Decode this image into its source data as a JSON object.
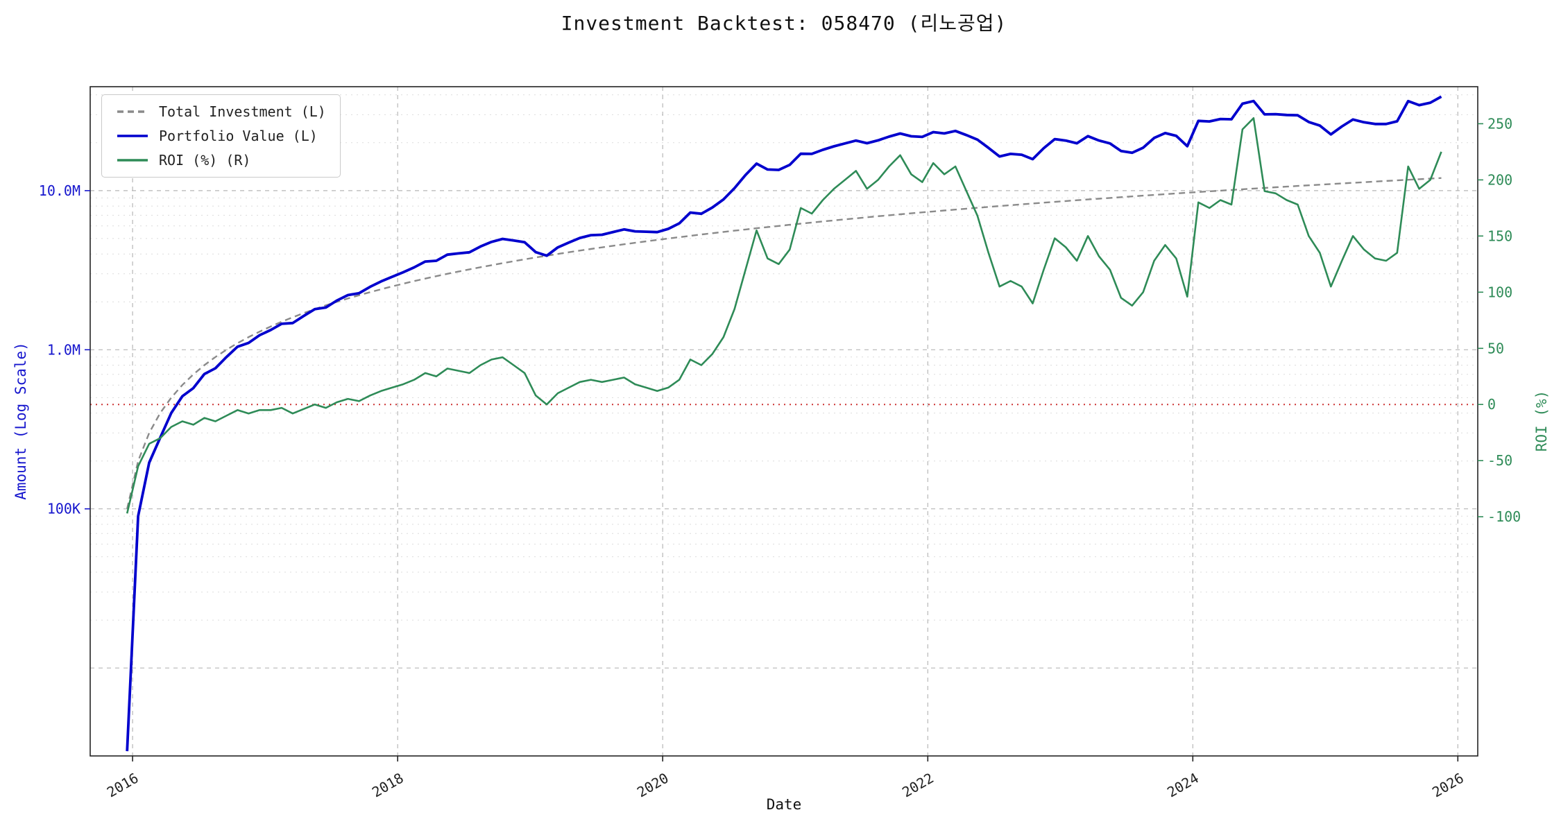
{
  "chart_data": {
    "type": "line",
    "title": "Investment Backtest: 058470 (리노공업)",
    "xlabel": "Date",
    "left_axis": {
      "label": "Amount (Log Scale)",
      "scale": "log",
      "color": "#1515cd",
      "range": [
        2800,
        45000000
      ],
      "tick_labels": [
        {
          "value": 100000,
          "label": "100K"
        },
        {
          "value": 1000000,
          "label": "1.0M"
        },
        {
          "value": 10000000,
          "label": "10.0M"
        }
      ]
    },
    "right_axis": {
      "label": "ROI (%)",
      "scale": "linear",
      "color": "#2e8b57",
      "range": [
        -313,
        283
      ],
      "ticks": [
        -100,
        -50,
        0,
        50,
        100,
        150,
        200,
        250
      ]
    },
    "x_axis": {
      "ticks": [
        2016,
        2018,
        2020,
        2022,
        2024,
        2026
      ],
      "range": [
        2015.68,
        2026.15
      ]
    },
    "zero_roi_line": {
      "value": 0,
      "color": "#cc3333",
      "style": "dotted"
    },
    "grid": {
      "major_color": "#aaaaaa",
      "minor_color": "#cccccc",
      "on": true
    },
    "legend": {
      "position": "upper-left",
      "items": [
        {
          "label": "Total Investment (L)",
          "color": "#8a8a8a",
          "dash": "9,6",
          "width": 2.4
        },
        {
          "label": "Portfolio Value (L)",
          "color": "#0000cd",
          "dash": "",
          "width": 3.8
        },
        {
          "label": "ROI (%) (R)",
          "color": "#2e8b57",
          "dash": "",
          "width": 2.6
        }
      ]
    },
    "series": {
      "start_month": "2015-12",
      "months": 120,
      "monthly_contribution": 100000,
      "total_investment_formula": "100000 * (month_index + 1)",
      "portfolio_value_formula": "total_investment * (1 + roi_pct / 100)",
      "roi_pct": [
        -97,
        -55,
        -35,
        -30,
        -20,
        -15,
        -18,
        -12,
        -15,
        -10,
        -5,
        -8,
        -5,
        -5,
        -3,
        -8,
        -4,
        0,
        -3,
        2,
        5,
        3,
        8,
        12,
        15,
        18,
        22,
        28,
        25,
        32,
        30,
        28,
        35,
        40,
        42,
        35,
        28,
        8,
        0,
        10,
        15,
        20,
        22,
        20,
        22,
        24,
        18,
        15,
        12,
        15,
        22,
        40,
        35,
        45,
        60,
        85,
        120,
        155,
        130,
        125,
        138,
        175,
        170,
        182,
        192,
        200,
        208,
        192,
        200,
        212,
        222,
        205,
        198,
        215,
        205,
        212,
        190,
        168,
        135,
        105,
        110,
        105,
        90,
        120,
        148,
        140,
        128,
        150,
        132,
        120,
        95,
        88,
        100,
        128,
        142,
        130,
        96,
        180,
        175,
        182,
        178,
        245,
        255,
        190,
        188,
        182,
        178,
        150,
        135,
        105,
        128,
        150,
        138,
        130,
        128,
        135,
        212,
        192,
        200,
        225
      ]
    }
  }
}
